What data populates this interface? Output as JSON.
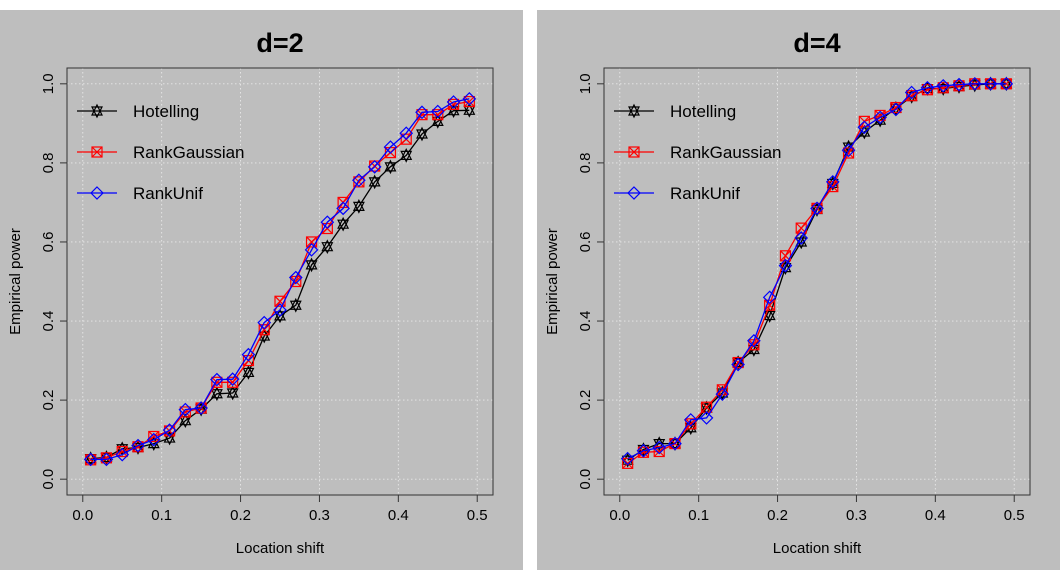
{
  "chart_data": [
    {
      "type": "line",
      "title": "d=2",
      "xlabel": "Location shift",
      "ylabel": "Empirical power",
      "xlim": [
        0.0,
        0.5
      ],
      "ylim": [
        0.0,
        1.0
      ],
      "xticks": [
        "0.0",
        "0.1",
        "0.2",
        "0.3",
        "0.4",
        "0.5"
      ],
      "yticks": [
        "0.0",
        "0.2",
        "0.4",
        "0.6",
        "0.8",
        "1.0"
      ],
      "grid": true,
      "legend_position": "top-left",
      "x": [
        0.01,
        0.03,
        0.05,
        0.07,
        0.09,
        0.11,
        0.13,
        0.15,
        0.17,
        0.19,
        0.21,
        0.23,
        0.25,
        0.27,
        0.29,
        0.31,
        0.33,
        0.35,
        0.37,
        0.39,
        0.41,
        0.43,
        0.45,
        0.47,
        0.49
      ],
      "series": [
        {
          "name": "Hotelling",
          "color": "#000000",
          "marker": "star",
          "values": [
            0.052,
            0.055,
            0.077,
            0.08,
            0.09,
            0.104,
            0.148,
            0.177,
            0.216,
            0.218,
            0.27,
            0.362,
            0.413,
            0.44,
            0.542,
            0.588,
            0.645,
            0.69,
            0.752,
            0.79,
            0.819,
            0.873,
            0.905,
            0.932,
            0.933
          ]
        },
        {
          "name": "RankGaussian",
          "color": "#ff0000",
          "marker": "box-x",
          "values": [
            0.049,
            0.054,
            0.07,
            0.082,
            0.108,
            0.122,
            0.17,
            0.18,
            0.245,
            0.245,
            0.3,
            0.378,
            0.45,
            0.5,
            0.6,
            0.634,
            0.7,
            0.752,
            0.792,
            0.826,
            0.86,
            0.922,
            0.922,
            0.948,
            0.955
          ]
        },
        {
          "name": "RankUnif",
          "color": "#0000ff",
          "marker": "diamond",
          "values": [
            0.05,
            0.05,
            0.062,
            0.085,
            0.1,
            0.124,
            0.176,
            0.18,
            0.252,
            0.253,
            0.315,
            0.396,
            0.428,
            0.51,
            0.58,
            0.65,
            0.685,
            0.756,
            0.79,
            0.84,
            0.875,
            0.928,
            0.93,
            0.954,
            0.962
          ]
        }
      ]
    },
    {
      "type": "line",
      "title": "d=4",
      "xlabel": "Location shift",
      "ylabel": "Empirical power",
      "xlim": [
        0.0,
        0.5
      ],
      "ylim": [
        0.0,
        1.0
      ],
      "xticks": [
        "0.0",
        "0.1",
        "0.2",
        "0.3",
        "0.4",
        "0.5"
      ],
      "yticks": [
        "0.0",
        "0.2",
        "0.4",
        "0.6",
        "0.8",
        "1.0"
      ],
      "grid": true,
      "legend_position": "top-left",
      "x": [
        0.01,
        0.03,
        0.05,
        0.07,
        0.09,
        0.11,
        0.13,
        0.15,
        0.17,
        0.19,
        0.21,
        0.23,
        0.25,
        0.27,
        0.29,
        0.31,
        0.33,
        0.35,
        0.37,
        0.39,
        0.41,
        0.43,
        0.45,
        0.47,
        0.49
      ],
      "series": [
        {
          "name": "Hotelling",
          "color": "#000000",
          "marker": "star",
          "values": [
            0.048,
            0.075,
            0.09,
            0.09,
            0.13,
            0.18,
            0.218,
            0.295,
            0.328,
            0.414,
            0.535,
            0.6,
            0.682,
            0.748,
            0.84,
            0.878,
            0.908,
            0.938,
            0.968,
            0.988,
            0.988,
            0.993,
            0.997,
            1.0,
            1.0
          ]
        },
        {
          "name": "RankGaussian",
          "color": "#ff0000",
          "marker": "box-x",
          "values": [
            0.04,
            0.068,
            0.07,
            0.09,
            0.14,
            0.182,
            0.226,
            0.295,
            0.34,
            0.44,
            0.565,
            0.635,
            0.685,
            0.74,
            0.825,
            0.905,
            0.92,
            0.94,
            0.97,
            0.985,
            0.99,
            0.995,
            1.0,
            1.0,
            1.0
          ]
        },
        {
          "name": "RankUnif",
          "color": "#0000ff",
          "marker": "diamond",
          "values": [
            0.052,
            0.072,
            0.08,
            0.09,
            0.15,
            0.155,
            0.215,
            0.29,
            0.35,
            0.46,
            0.54,
            0.61,
            0.685,
            0.752,
            0.832,
            0.89,
            0.915,
            0.935,
            0.978,
            0.99,
            0.995,
            0.998,
            1.0,
            1.0,
            1.0
          ]
        }
      ]
    }
  ]
}
